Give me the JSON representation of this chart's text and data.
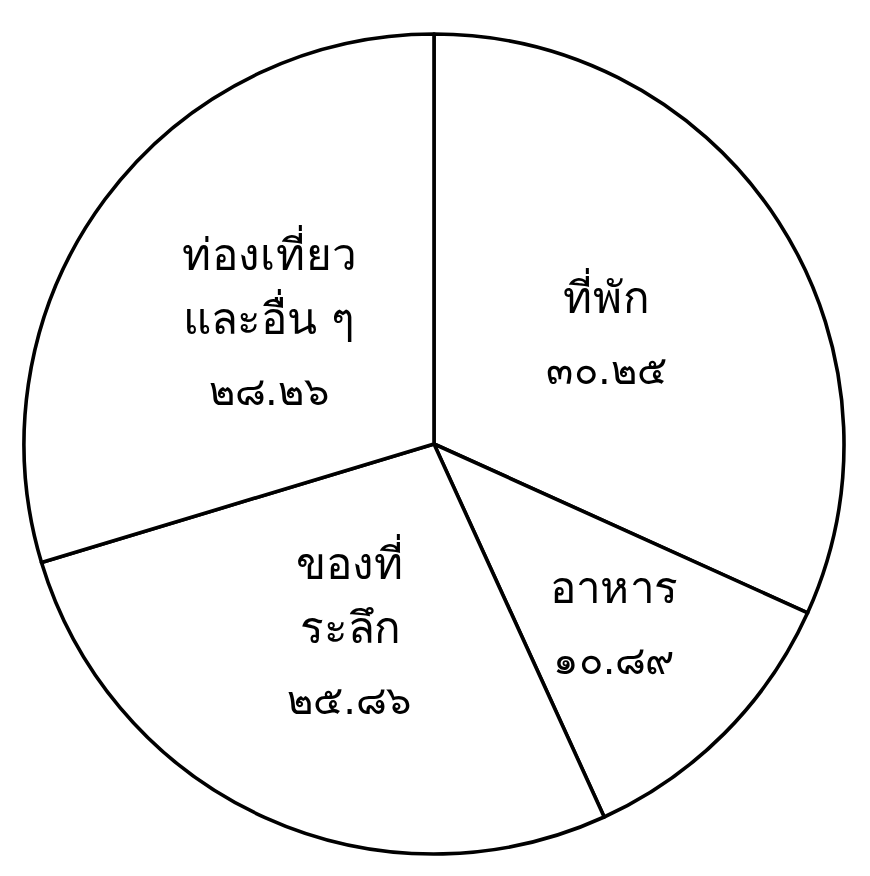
{
  "chart_data": {
    "type": "pie",
    "categories": [
      "ที่พัก",
      "อาหาร",
      "ของที่\nระลึก",
      "ท่องเที่ยว\nและอื่น ๆ"
    ],
    "values": [
      30.25,
      10.89,
      25.86,
      28.26
    ],
    "value_labels": [
      "๓๐.๒๕",
      "๑๐.๘๙",
      "๒๕.๘๖",
      "๒๘.๒๖"
    ],
    "colors": [
      "#ffffff",
      "#ffffff",
      "#ffffff",
      "#ffffff"
    ]
  }
}
